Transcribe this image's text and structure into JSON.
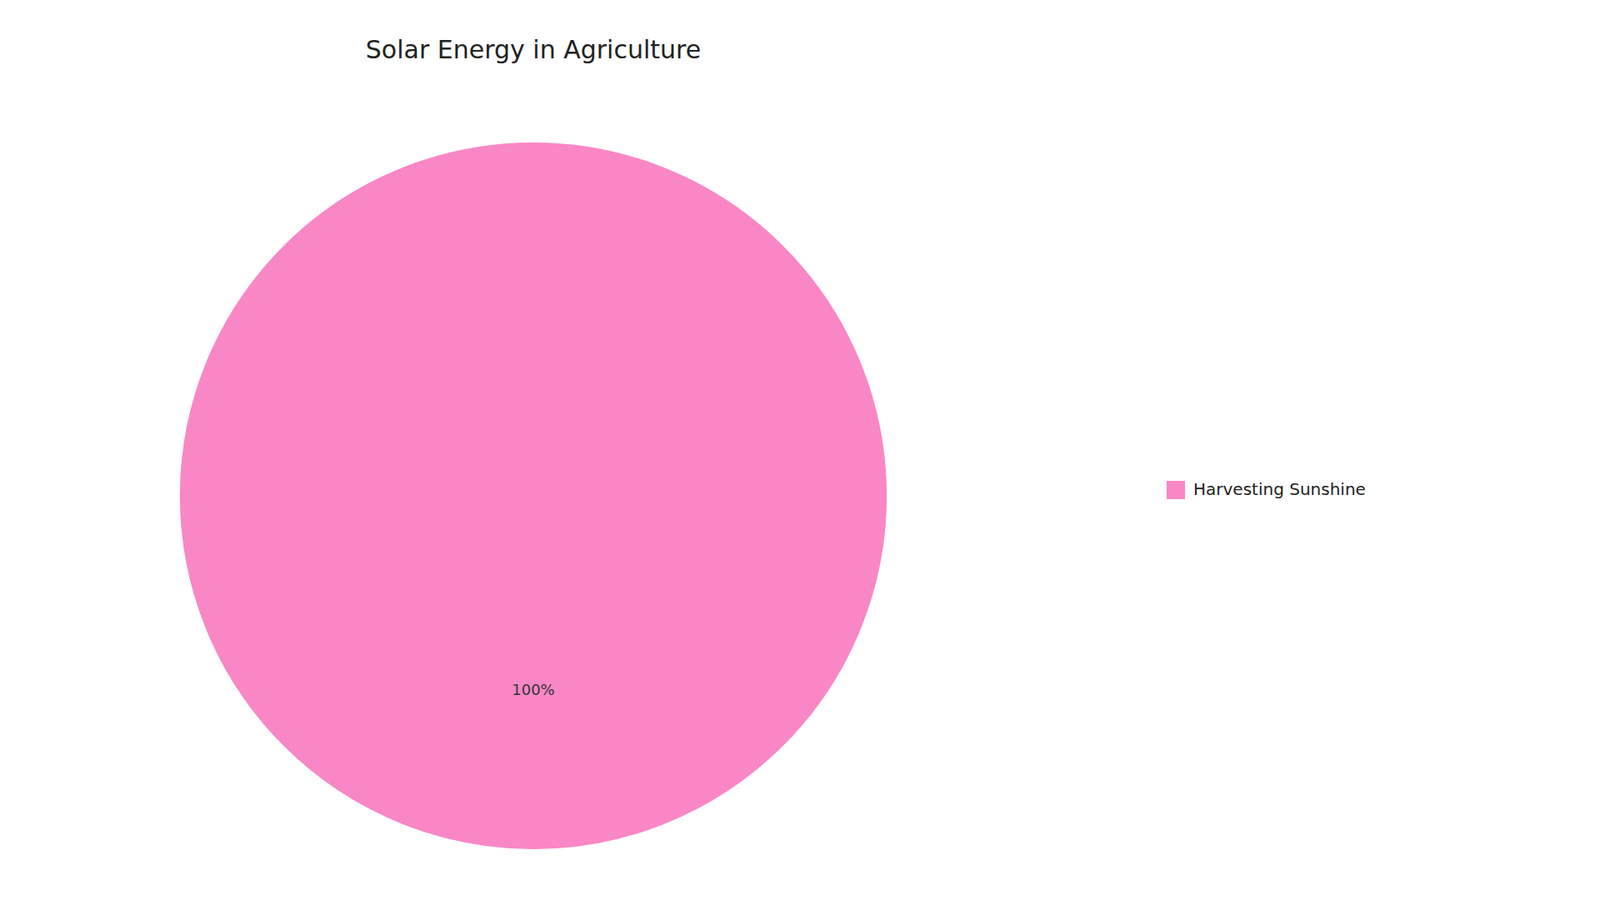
{
  "chart_data": {
    "type": "pie",
    "title": "Solar Energy in Agriculture",
    "categories": [
      "Harvesting Sunshine"
    ],
    "values": [
      100
    ],
    "value_labels": [
      "100%"
    ],
    "colors": [
      "#F987C5"
    ],
    "data_labels": true,
    "legend": "right"
  }
}
